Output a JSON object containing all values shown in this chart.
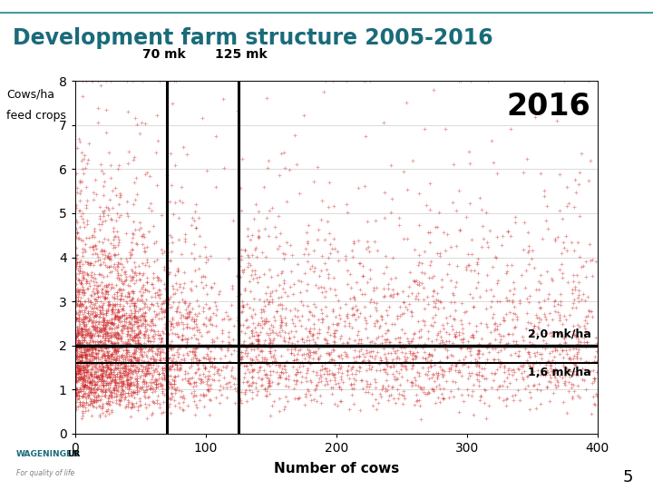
{
  "title": "Development farm structure 2005-2016",
  "title_color": "#1a6b7a",
  "xlabel": "Number of cows",
  "ylabel_line1": "Cows/ha",
  "ylabel_line2": "feed crops",
  "xlim": [
    0,
    400
  ],
  "ylim": [
    0,
    8
  ],
  "xticks": [
    0,
    100,
    200,
    300,
    400
  ],
  "yticks": [
    0,
    1,
    2,
    3,
    4,
    5,
    6,
    7,
    8
  ],
  "vline1_x": 70,
  "vline2_x": 125,
  "vline_label1": "70 mk",
  "vline_label2": "125 mk",
  "hline1_y": 2.0,
  "hline2_y": 1.6,
  "hline1_label": "2,0 mk/ha",
  "hline2_label": "1,6 mk/ha",
  "year_label": "2016",
  "dot_color": "#cc2222",
  "dot_alpha": 0.45,
  "dot_size": 5,
  "n_points": 5000,
  "background_color": "#ffffff",
  "plot_bg_color": "#ffffff",
  "seed": 42,
  "top_line_color": "#4a9aa5",
  "wageningen_color": "#1a6b7a"
}
